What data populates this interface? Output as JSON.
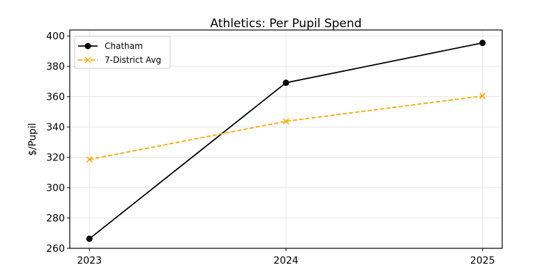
{
  "chart_data": {
    "type": "line",
    "title": "Athletics: Per Pupil Spend",
    "xlabel": "",
    "ylabel": "$/Pupil",
    "x": [
      2023,
      2024,
      2025
    ],
    "x_tick_labels": [
      "2023",
      "2024",
      "2025"
    ],
    "y_ticks": [
      260,
      280,
      300,
      320,
      340,
      360,
      380,
      400
    ],
    "xlim": [
      2022.9,
      2025.1
    ],
    "ylim": [
      260,
      404
    ],
    "grid": true,
    "legend_placement": "top-left",
    "series": [
      {
        "name": "Chatham",
        "values": [
          266.3,
          369.2,
          395.5
        ],
        "color": "#000000",
        "marker": "circle",
        "linestyle": "solid"
      },
      {
        "name": "7-District Avg",
        "values": [
          318.6,
          343.8,
          360.5
        ],
        "color": "#FFA500",
        "marker": "x",
        "linestyle": "dashed"
      }
    ]
  }
}
